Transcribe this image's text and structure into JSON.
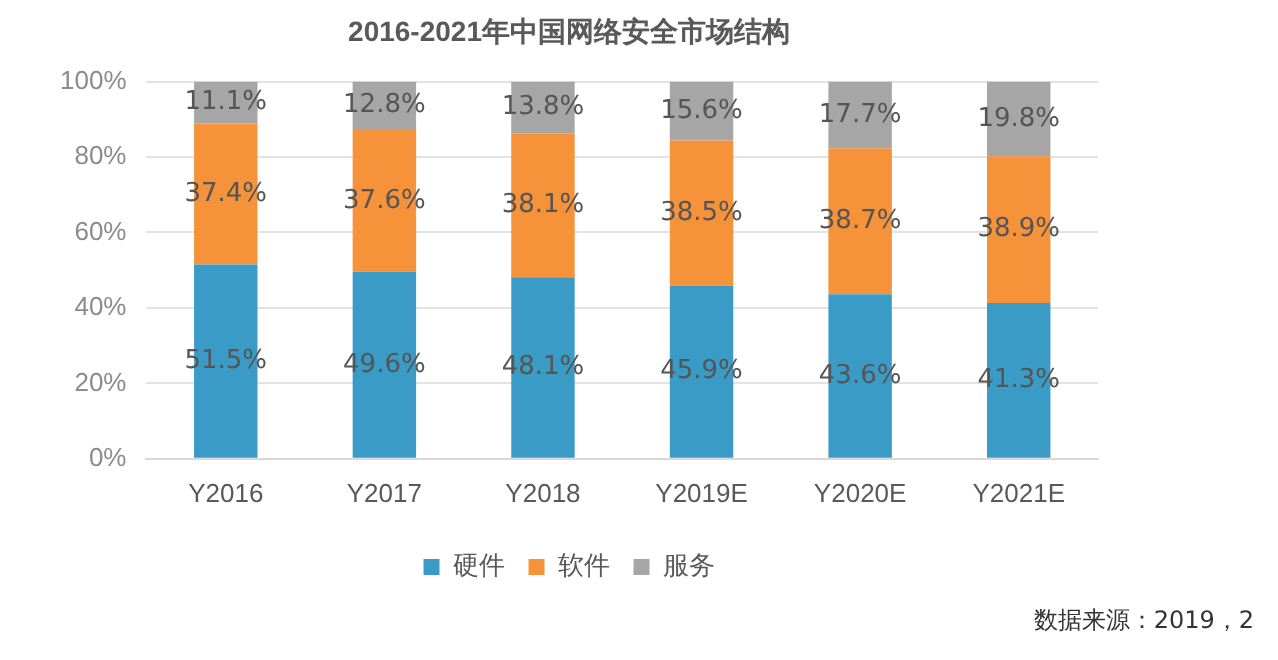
{
  "chart_data": {
    "type": "bar",
    "title": "2016-2021年中国网络安全市场结构",
    "stacked": true,
    "categories": [
      "Y2016",
      "Y2017",
      "Y2018",
      "Y2019E",
      "Y2020E",
      "Y2021E"
    ],
    "series": [
      {
        "name": "硬件",
        "color": "#3a9cc6",
        "values": [
          51.5,
          49.6,
          48.1,
          45.9,
          43.6,
          41.3
        ],
        "value_labels": [
          "51.5%",
          "49.6%",
          "48.1%",
          "45.9%",
          "43.6%",
          "41.3%"
        ]
      },
      {
        "name": "软件",
        "color": "#f5923a",
        "values": [
          37.4,
          37.6,
          38.1,
          38.5,
          38.7,
          38.9
        ],
        "value_labels": [
          "37.4%",
          "37.6%",
          "38.1%",
          "38.5%",
          "38.7%",
          "38.9%"
        ]
      },
      {
        "name": "服务",
        "color": "#a6a6a6",
        "values": [
          11.1,
          12.8,
          13.8,
          15.6,
          17.7,
          19.8
        ],
        "value_labels": [
          "11.1%",
          "12.8%",
          "13.8%",
          "15.6%",
          "17.7%",
          "19.8%"
        ]
      }
    ],
    "ylim": [
      0,
      100
    ],
    "yticks": [
      {
        "value": 0,
        "label": "0%"
      },
      {
        "value": 20,
        "label": "20%"
      },
      {
        "value": 40,
        "label": "40%"
      },
      {
        "value": 60,
        "label": "60%"
      },
      {
        "value": 80,
        "label": "80%"
      },
      {
        "value": 100,
        "label": "100%"
      }
    ],
    "grid": "y",
    "legend": "bottom",
    "annotations": [
      "数据来源：2019，2"
    ]
  }
}
